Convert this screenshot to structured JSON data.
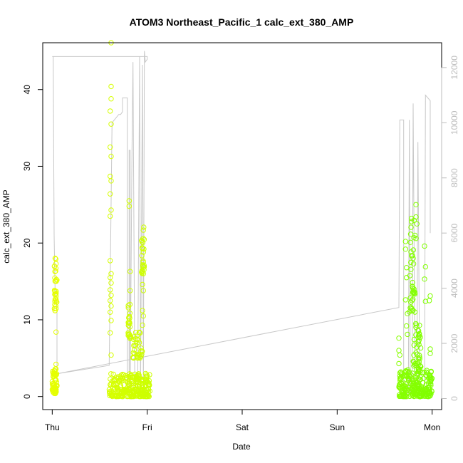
{
  "chart_data": {
    "type": "scatter",
    "title": "ATOM3 Northeast_Pacific_1 calc_ext_380_AMP",
    "xlabel": "Date",
    "ylabel": "calc_ext_380_AMP",
    "y2label": "",
    "x_ticks": [
      "Thu",
      "Fri",
      "Sat",
      "Sun",
      "Mon"
    ],
    "x_range_days": [
      -0.1,
      4.1
    ],
    "ylim": [
      -1.7,
      46.1
    ],
    "yticks": [
      0,
      10,
      20,
      30,
      40
    ],
    "y2lim": [
      -400,
      12900
    ],
    "y2ticks": [
      0,
      2000,
      4000,
      6000,
      8000,
      10000,
      12000
    ],
    "grid": false,
    "colors": {
      "early_points": "#e6ff00",
      "late_points": "#7fff00",
      "secondary_line": "#c8c8c8",
      "axis": "#000000",
      "right_axis": "#bdbdbd"
    },
    "scatter_clusters": [
      {
        "name": "Thu-lower",
        "x_start": 0.0,
        "x_end": 0.05,
        "y_min": 0.4,
        "y_max": 3.6,
        "n": 60
      },
      {
        "name": "Thu-upper",
        "x_start": 0.02,
        "x_end": 0.05,
        "y_min": 11.2,
        "y_max": 18.2,
        "n": 35
      },
      {
        "name": "Fri-base",
        "x_start": 0.6,
        "x_end": 1.03,
        "y_min": 0.0,
        "y_max": 3.0,
        "n": 260
      },
      {
        "name": "Fri-mid-a",
        "x_start": 0.8,
        "x_end": 0.83,
        "y_min": 7.5,
        "y_max": 12.5,
        "n": 25
      },
      {
        "name": "Fri-mid-b",
        "x_start": 0.85,
        "x_end": 0.95,
        "y_min": 5.0,
        "y_max": 9.0,
        "n": 35
      },
      {
        "name": "Fri-upper",
        "x_start": 0.94,
        "x_end": 0.97,
        "y_min": 16.0,
        "y_max": 22.5,
        "n": 28
      },
      {
        "name": "Mon-base",
        "x_start": 3.65,
        "x_end": 4.0,
        "y_min": 0.0,
        "y_max": 3.5,
        "n": 230
      },
      {
        "name": "Mon-mid",
        "x_start": 3.8,
        "x_end": 3.88,
        "y_min": 3.5,
        "y_max": 10.5,
        "n": 45
      },
      {
        "name": "Mon-upper",
        "x_start": 3.76,
        "x_end": 3.82,
        "y_min": 11.0,
        "y_max": 25.0,
        "n": 40
      }
    ],
    "scatter_points": [
      [
        0.62,
        46.1
      ],
      [
        0.62,
        40.4
      ],
      [
        0.62,
        38.8
      ],
      [
        0.61,
        37.2
      ],
      [
        0.62,
        35.5
      ],
      [
        0.61,
        32.5
      ],
      [
        0.62,
        31.3
      ],
      [
        0.61,
        28.7
      ],
      [
        0.62,
        28.1
      ],
      [
        0.61,
        26.4
      ],
      [
        0.62,
        24.3
      ],
      [
        0.61,
        23.5
      ],
      [
        0.61,
        17.7
      ],
      [
        0.62,
        16.0
      ],
      [
        0.61,
        15.5
      ],
      [
        0.62,
        14.8
      ],
      [
        0.61,
        13.9
      ],
      [
        0.62,
        13.2
      ],
      [
        0.61,
        12.5
      ],
      [
        0.62,
        11.8
      ],
      [
        0.61,
        11.0
      ],
      [
        0.62,
        9.9
      ],
      [
        0.61,
        8.3
      ],
      [
        0.62,
        5.4
      ],
      [
        0.81,
        25.5
      ],
      [
        0.81,
        24.8
      ],
      [
        0.82,
        16.3
      ],
      [
        0.82,
        13.8
      ],
      [
        0.95,
        14.6
      ],
      [
        0.96,
        13.8
      ],
      [
        0.95,
        11.2
      ],
      [
        0.96,
        10.5
      ],
      [
        0.95,
        9.3
      ],
      [
        0.04,
        8.4
      ],
      [
        0.04,
        4.2
      ],
      [
        3.65,
        7.6
      ],
      [
        3.65,
        6.0
      ],
      [
        3.66,
        5.4
      ],
      [
        3.65,
        4.3
      ],
      [
        3.72,
        20.2
      ],
      [
        3.72,
        19.2
      ],
      [
        3.73,
        16.8
      ],
      [
        3.73,
        15.5
      ],
      [
        3.72,
        12.6
      ],
      [
        3.74,
        10.8
      ],
      [
        3.73,
        9.2
      ],
      [
        3.74,
        8.1
      ],
      [
        3.83,
        25.0
      ],
      [
        3.83,
        23.4
      ],
      [
        3.84,
        22.5
      ],
      [
        3.83,
        20.6
      ],
      [
        3.92,
        19.6
      ],
      [
        3.93,
        16.9
      ],
      [
        3.92,
        15.3
      ],
      [
        3.93,
        12.4
      ],
      [
        3.98,
        13.1
      ],
      [
        3.97,
        12.5
      ],
      [
        3.98,
        6.2
      ],
      [
        3.98,
        5.6
      ]
    ],
    "secondary_line": [
      [
        0.0,
        12400
      ],
      [
        0.01,
        12400
      ],
      [
        0.02,
        5900
      ],
      [
        0.03,
        4000
      ],
      [
        0.05,
        3200
      ],
      [
        0.05,
        900
      ],
      [
        0.6,
        1200
      ],
      [
        0.63,
        10000
      ],
      [
        0.7,
        10300
      ],
      [
        0.72,
        10300
      ],
      [
        0.74,
        10400
      ],
      [
        0.74,
        10900
      ],
      [
        0.79,
        10900
      ],
      [
        0.79,
        200
      ],
      [
        0.81,
        200
      ],
      [
        0.81,
        9000
      ],
      [
        0.82,
        9000
      ],
      [
        0.82,
        200
      ],
      [
        0.84,
        9000
      ],
      [
        0.85,
        12200
      ],
      [
        0.87,
        200
      ],
      [
        0.9,
        200
      ],
      [
        0.92,
        12400
      ],
      [
        0.93,
        200
      ],
      [
        0.95,
        12100
      ],
      [
        0.96,
        200
      ],
      [
        0.97,
        12600
      ],
      [
        0.98,
        12200
      ],
      [
        1.0,
        12300
      ],
      [
        1.0,
        12400
      ],
      [
        0.0,
        12400
      ]
    ],
    "secondary_line_late": [
      [
        0.05,
        900
      ],
      [
        3.65,
        3300
      ],
      [
        3.66,
        10100
      ],
      [
        3.7,
        10100
      ],
      [
        3.7,
        200
      ],
      [
        3.75,
        200
      ],
      [
        3.76,
        10100
      ],
      [
        3.77,
        200
      ],
      [
        3.79,
        200
      ],
      [
        3.8,
        10700
      ],
      [
        3.82,
        200
      ],
      [
        3.84,
        200
      ],
      [
        3.85,
        9300
      ],
      [
        3.87,
        200
      ],
      [
        3.92,
        200
      ],
      [
        3.93,
        11000
      ],
      [
        3.98,
        10800
      ],
      [
        3.98,
        6000
      ]
    ]
  }
}
